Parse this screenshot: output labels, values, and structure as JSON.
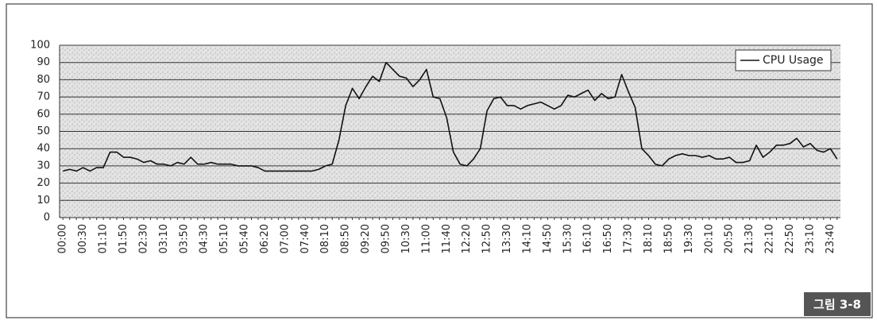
{
  "chart_data": {
    "type": "line",
    "categories": [
      "00:00",
      null,
      null,
      "00:30",
      null,
      null,
      "01:10",
      null,
      null,
      "01:50",
      null,
      null,
      "02:30",
      null,
      null,
      "03:10",
      null,
      null,
      "03:50",
      null,
      null,
      "04:30",
      null,
      null,
      "05:10",
      null,
      null,
      "05:40",
      null,
      null,
      "06:20",
      null,
      null,
      "07:00",
      null,
      null,
      "07:40",
      null,
      null,
      "08:10",
      null,
      null,
      "08:50",
      null,
      null,
      "09:20",
      null,
      null,
      "09:50",
      null,
      null,
      "10:30",
      null,
      null,
      "11:00",
      null,
      null,
      "11:40",
      null,
      null,
      "12:20",
      null,
      null,
      "12:50",
      null,
      null,
      "13:30",
      null,
      null,
      "14:10",
      null,
      null,
      "14:50",
      null,
      null,
      "15:30",
      null,
      null,
      "16:10",
      null,
      null,
      "16:50",
      null,
      null,
      "17:30",
      null,
      null,
      "18:10",
      null,
      null,
      "18:50",
      null,
      null,
      "19:30",
      null,
      null,
      "20:10",
      null,
      null,
      "20:50",
      null,
      null,
      "21:30",
      null,
      null,
      "22:10",
      null,
      null,
      "22:50",
      null,
      null,
      "23:10",
      null,
      null,
      "23:40",
      null
    ],
    "series": [
      {
        "name": "CPU Usage",
        "color": "#111111",
        "values": [
          27,
          28,
          27,
          29,
          27,
          29,
          29,
          38,
          38,
          35,
          35,
          34,
          32,
          33,
          31,
          31,
          30,
          32,
          31,
          35,
          31,
          31,
          32,
          31,
          31,
          31,
          30,
          30,
          30,
          29,
          27,
          27,
          27,
          27,
          27,
          27,
          27,
          27,
          28,
          30,
          31,
          45,
          65,
          75,
          69,
          76,
          82,
          79,
          90,
          86,
          82,
          81,
          76,
          80,
          86,
          70,
          69,
          58,
          38,
          31,
          30,
          34,
          40,
          62,
          69,
          70,
          65,
          65,
          63,
          65,
          66,
          67,
          65,
          63,
          65,
          71,
          70,
          72,
          74,
          68,
          72,
          69,
          70,
          83,
          73,
          64,
          40,
          36,
          31,
          30,
          34,
          36,
          37,
          36,
          36,
          35,
          36,
          34,
          34,
          35,
          32,
          32,
          33,
          42,
          35,
          38,
          42,
          42,
          43,
          46,
          41,
          43,
          39,
          38,
          40,
          34
        ]
      }
    ],
    "ylim": [
      0,
      100
    ],
    "yticks": [
      0,
      10,
      20,
      30,
      40,
      50,
      60,
      70,
      80,
      90,
      100
    ],
    "grid": true,
    "legend": "top-right"
  },
  "figure_label": "그림 3-8"
}
